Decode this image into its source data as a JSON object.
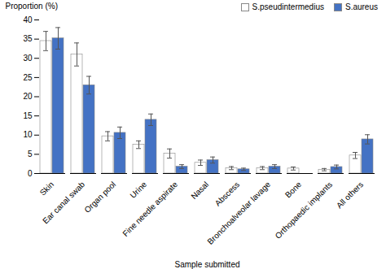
{
  "chart_data": {
    "type": "bar",
    "categories": [
      "Skin",
      "Ear canal swab",
      "Organ pool",
      "Urine",
      "Fine needle aspirate",
      "Nasal",
      "Abscess",
      "Bronchoalveolar lavage",
      "Bone",
      "Orthopaedic implants",
      "All others"
    ],
    "xlabel": "Sample submitted",
    "ylabel": "Proportion (%)",
    "series": [
      {
        "name": "S.pseudintermedius",
        "color": "#ffffff",
        "values": [
          34.5,
          31.0,
          9.7,
          7.5,
          5.2,
          2.8,
          1.4,
          1.4,
          1.3,
          1.0,
          4.7
        ],
        "errors": [
          2.5,
          3.0,
          1.2,
          1.0,
          1.2,
          0.7,
          0.4,
          0.4,
          0.4,
          0.3,
          0.8
        ]
      },
      {
        "name": "S.aureus",
        "color": "#4472c4",
        "values": [
          35.2,
          23.0,
          10.6,
          14.0,
          1.8,
          3.5,
          1.1,
          1.8,
          null,
          1.7,
          8.9
        ],
        "errors": [
          2.8,
          2.3,
          1.5,
          1.5,
          0.5,
          0.8,
          0.3,
          0.5,
          null,
          0.5,
          1.2
        ]
      }
    ],
    "ylim": [
      0,
      40
    ],
    "yticks": [
      0,
      5,
      10,
      15,
      20,
      25,
      30,
      35,
      40
    ],
    "grid": false,
    "legend": "upper right"
  }
}
